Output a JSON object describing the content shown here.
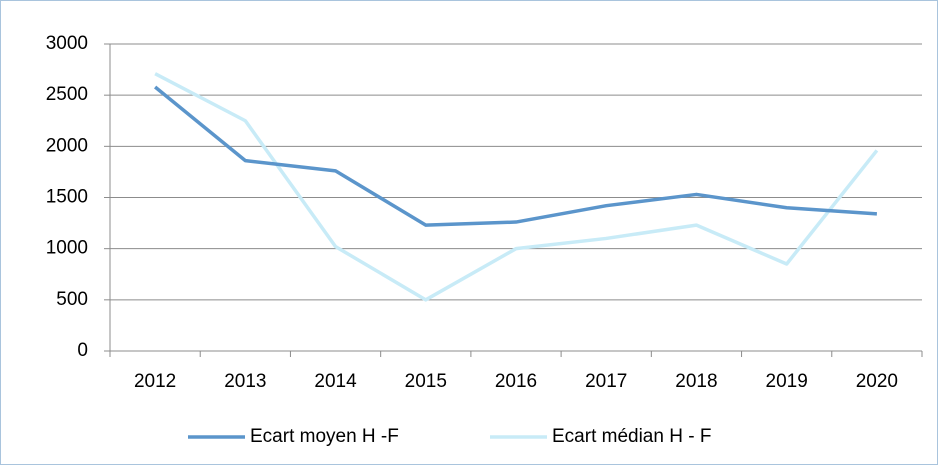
{
  "chart_data": {
    "type": "line",
    "categories": [
      "2012",
      "2013",
      "2014",
      "2015",
      "2016",
      "2017",
      "2018",
      "2019",
      "2020"
    ],
    "series": [
      {
        "name": "Ecart moyen H -F",
        "color": "#5b95cb",
        "values": [
          2580,
          1860,
          1760,
          1230,
          1260,
          1420,
          1530,
          1400,
          1340
        ]
      },
      {
        "name": "Ecart médian H - F",
        "color": "#c8ebf7",
        "values": [
          2710,
          2250,
          1020,
          500,
          1000,
          1100,
          1230,
          850,
          1960
        ]
      }
    ],
    "ylim": [
      0,
      3000
    ],
    "yticks": [
      0,
      500,
      1000,
      1500,
      2000,
      2500,
      3000
    ],
    "grid": true,
    "legend": "bottom"
  }
}
